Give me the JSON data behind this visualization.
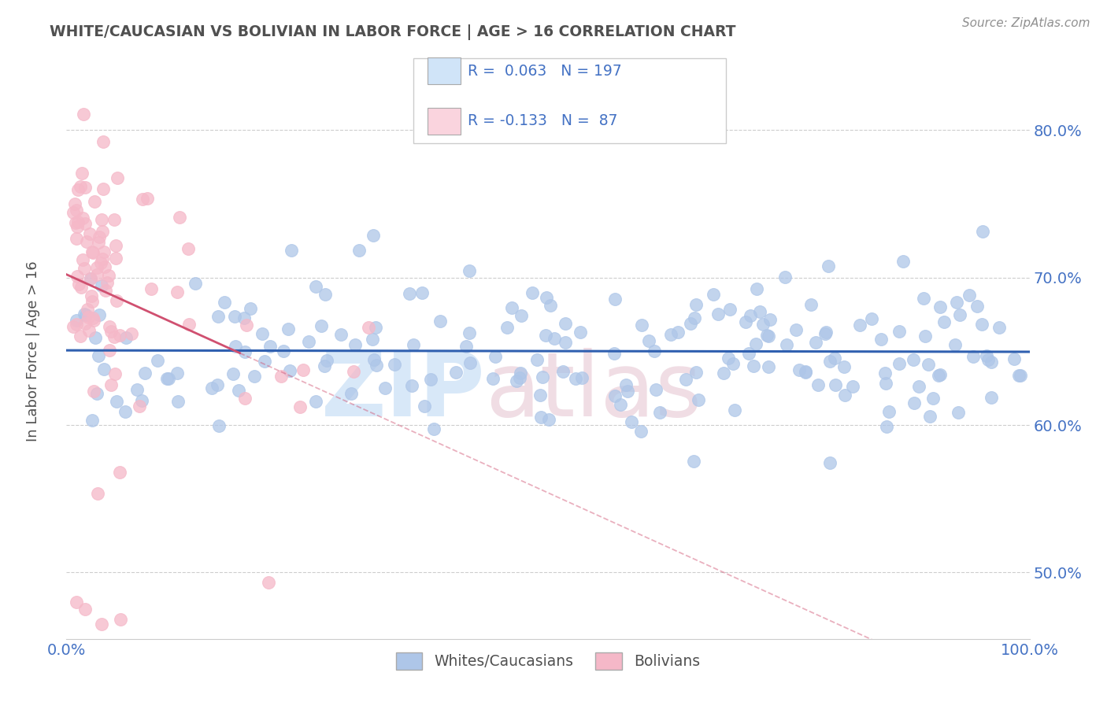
{
  "title": "WHITE/CAUCASIAN VS BOLIVIAN IN LABOR FORCE | AGE > 16 CORRELATION CHART",
  "source_text": "Source: ZipAtlas.com",
  "ylabel": "In Labor Force | Age > 16",
  "xlim": [
    0.0,
    1.0
  ],
  "ylim": [
    0.455,
    0.855
  ],
  "yticks": [
    0.5,
    0.6,
    0.7,
    0.8
  ],
  "blue_R": 0.063,
  "blue_N": 197,
  "pink_R": -0.133,
  "pink_N": 87,
  "blue_color": "#aec6e8",
  "pink_color": "#f5b8c8",
  "blue_line_color": "#3060b0",
  "pink_line_color": "#d05070",
  "legend_blue_fill": "#d0e4f8",
  "legend_pink_fill": "#fad4de",
  "title_color": "#505050",
  "grid_color": "#c8c8c8",
  "watermark_color": "#d8e8f8",
  "watermark_pink": "#f0dde4",
  "text_blue": "#4472c4",
  "source_color": "#909090"
}
